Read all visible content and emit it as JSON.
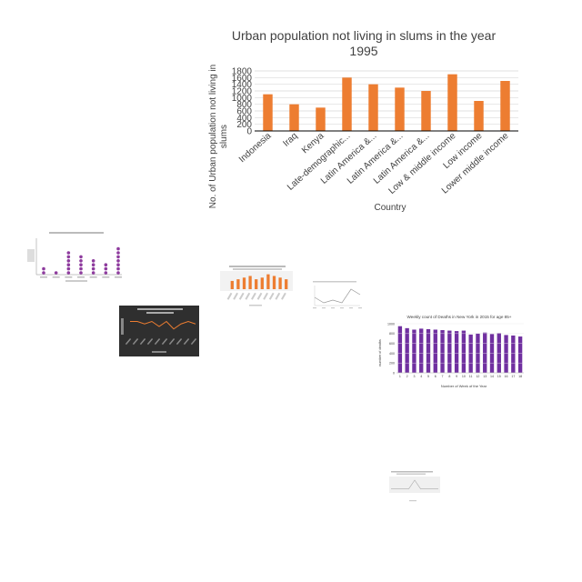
{
  "chart_data": [
    {
      "id": "main",
      "type": "bar",
      "title_line1": "Urban population not living in slums in the year",
      "title_line2": "1995",
      "xlabel": "Country",
      "ylabel_line1": "No. of Urban population not living in",
      "ylabel_line2": "slums",
      "categories": [
        "Indonesia",
        "Iraq",
        "Kenya",
        "Late-demographic...",
        "Latin America &...",
        "Latin America &...",
        "Latin America &...",
        "Low & middle income",
        "Low income",
        "Lower middle income"
      ],
      "values": [
        1100,
        800,
        700,
        1600,
        1400,
        1300,
        1200,
        1700,
        900,
        1500
      ],
      "yticks": [
        0,
        200,
        400,
        600,
        800,
        1000,
        1200,
        1400,
        1600,
        1800
      ],
      "ylim": [
        0,
        1800
      ],
      "grid": true,
      "color": "#ed7d31"
    },
    {
      "id": "weekly",
      "type": "bar",
      "title": "Weekly count of Deaths in New York in 2015 for age 85+",
      "xlabel": "Number of Week of the Year",
      "ylabel": "number of deaths",
      "categories": [
        "1",
        "2",
        "3",
        "4",
        "5",
        "6",
        "7",
        "8",
        "9",
        "10",
        "11",
        "12",
        "13",
        "14",
        "15",
        "16",
        "17",
        "18"
      ],
      "values": [
        950,
        910,
        880,
        900,
        890,
        880,
        870,
        860,
        850,
        860,
        780,
        800,
        820,
        790,
        810,
        770,
        760,
        740
      ],
      "yticks": [
        0,
        200,
        400,
        600,
        800,
        1000
      ],
      "ylim": [
        0,
        1000
      ],
      "color": "#7030a0"
    },
    {
      "id": "thumb-dots",
      "type": "scatter",
      "values": [
        2,
        1,
        6,
        5,
        4,
        3,
        7
      ],
      "color": "#8e3b9e"
    },
    {
      "id": "thumb-bars",
      "type": "bar",
      "values": [
        5,
        6,
        7,
        8,
        6,
        7,
        9,
        8,
        7,
        6
      ],
      "color": "#ed7d31"
    },
    {
      "id": "thumb-line",
      "type": "line",
      "values": [
        3,
        1,
        2,
        1,
        6,
        4
      ],
      "color": "#999999"
    },
    {
      "id": "thumb-dark",
      "type": "line",
      "values": [
        6,
        6,
        5,
        6,
        4,
        6,
        3,
        5,
        6,
        5
      ],
      "color": "#ed7d31"
    },
    {
      "id": "thumb-small",
      "type": "line",
      "values": [
        1,
        1,
        1,
        1,
        5,
        1,
        1,
        1,
        1
      ],
      "color": "#aaaaaa"
    }
  ]
}
